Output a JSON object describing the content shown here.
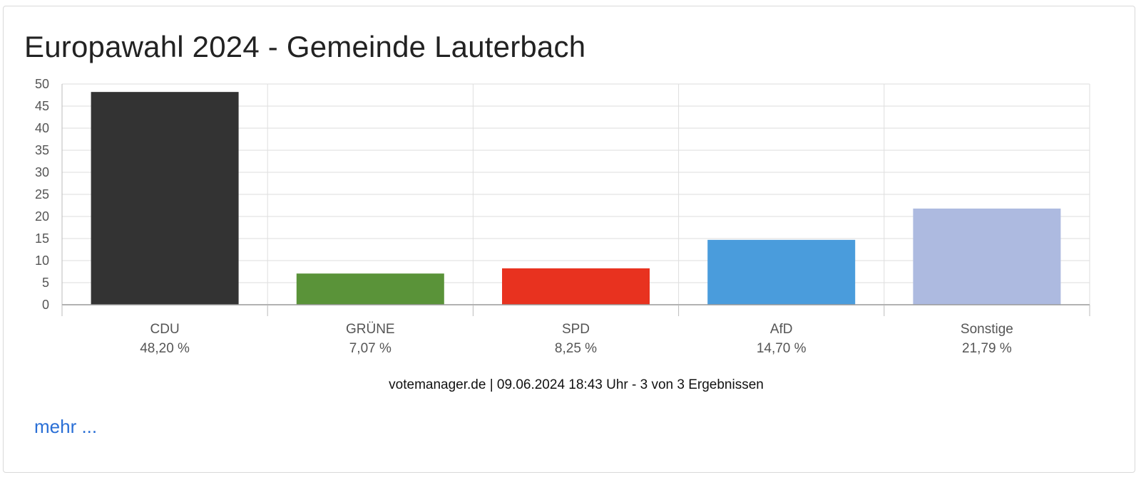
{
  "page": {
    "title": "Europawahl 2024 - Gemeinde Lauterbach",
    "source_line": "votemanager.de | 09.06.2024 18:43 Uhr - 3 von 3 Ergebnissen",
    "more_link": "mehr ..."
  },
  "chart_data": {
    "type": "bar",
    "title": "Europawahl 2024 - Gemeinde Lauterbach",
    "xlabel": "",
    "ylabel": "",
    "ylim": [
      0,
      50
    ],
    "yticks": [
      "0",
      "5",
      "10",
      "15",
      "20",
      "25",
      "30",
      "35",
      "40",
      "45",
      "50"
    ],
    "grid": true,
    "categories": [
      "CDU",
      "GRÜNE",
      "SPD",
      "AfD",
      "Sonstige"
    ],
    "values": [
      48.2,
      7.07,
      8.25,
      14.7,
      21.79
    ],
    "value_labels": [
      "48,20 %",
      "7,07 %",
      "8,25 %",
      "14,70 %",
      "21,79 %"
    ],
    "colors": [
      "#333333",
      "#5a9339",
      "#e8321f",
      "#4a9cdc",
      "#adbae0"
    ]
  }
}
